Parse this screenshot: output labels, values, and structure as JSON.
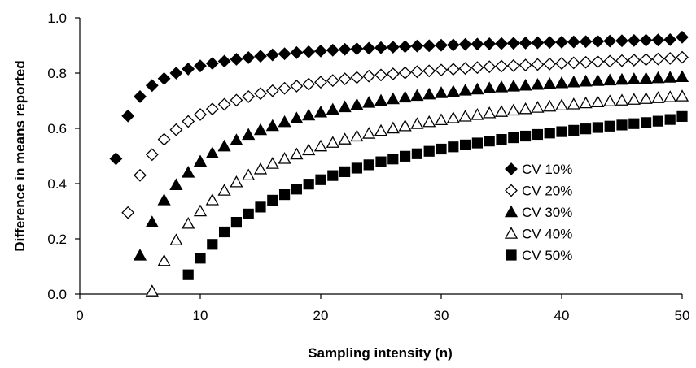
{
  "chart_data": {
    "type": "scatter",
    "xlabel": "Sampling intensity (n)",
    "ylabel": "Difference in means reported",
    "xlim": [
      0,
      50
    ],
    "ylim": [
      0,
      1
    ],
    "x_ticks": [
      0,
      10,
      20,
      30,
      40,
      50
    ],
    "y_ticks": [
      0,
      0.2,
      0.4,
      0.6,
      0.8,
      1.0
    ],
    "x_tick_labels": [
      "0",
      "10",
      "20",
      "30",
      "40",
      "50"
    ],
    "y_tick_labels": [
      "0.0",
      "0.2",
      "0.4",
      "0.6",
      "0.8",
      "1.0"
    ],
    "grid": false,
    "legend_position": "center-right",
    "series": [
      {
        "name": "CV 10%",
        "marker": "diamond",
        "fill": "filled",
        "x_start": 3,
        "x_end": 50,
        "values": [
          0.49,
          0.645,
          0.715,
          0.755,
          0.78,
          0.8,
          0.815,
          0.826,
          0.835,
          0.843,
          0.85,
          0.856,
          0.861,
          0.866,
          0.87,
          0.874,
          0.877,
          0.88,
          0.883,
          0.886,
          0.888,
          0.89,
          0.892,
          0.894,
          0.896,
          0.898,
          0.899,
          0.901,
          0.902,
          0.904,
          0.905,
          0.906,
          0.907,
          0.908,
          0.909,
          0.91,
          0.911,
          0.912,
          0.913,
          0.914,
          0.915,
          0.916,
          0.917,
          0.918,
          0.919,
          0.92,
          0.921,
          0.93
        ]
      },
      {
        "name": "CV 20%",
        "marker": "diamond",
        "fill": "open",
        "x_start": 4,
        "x_end": 50,
        "values": [
          0.295,
          0.43,
          0.505,
          0.56,
          0.595,
          0.625,
          0.65,
          0.67,
          0.687,
          0.702,
          0.715,
          0.726,
          0.736,
          0.745,
          0.753,
          0.76,
          0.767,
          0.773,
          0.779,
          0.784,
          0.789,
          0.793,
          0.797,
          0.801,
          0.805,
          0.808,
          0.811,
          0.814,
          0.817,
          0.82,
          0.823,
          0.825,
          0.827,
          0.829,
          0.831,
          0.833,
          0.835,
          0.837,
          0.839,
          0.841,
          0.843,
          0.845,
          0.847,
          0.849,
          0.851,
          0.853,
          0.857
        ]
      },
      {
        "name": "CV 30%",
        "marker": "triangle",
        "fill": "filled",
        "x_start": 5,
        "x_end": 50,
        "values": [
          0.14,
          0.26,
          0.34,
          0.395,
          0.44,
          0.48,
          0.51,
          0.535,
          0.557,
          0.577,
          0.594,
          0.609,
          0.623,
          0.636,
          0.647,
          0.658,
          0.668,
          0.677,
          0.685,
          0.693,
          0.7,
          0.706,
          0.712,
          0.718,
          0.723,
          0.728,
          0.733,
          0.737,
          0.741,
          0.745,
          0.749,
          0.752,
          0.755,
          0.758,
          0.761,
          0.764,
          0.767,
          0.77,
          0.772,
          0.774,
          0.776,
          0.778,
          0.78,
          0.782,
          0.784,
          0.786
        ]
      },
      {
        "name": "CV 40%",
        "marker": "triangle",
        "fill": "open",
        "x_start": 6,
        "x_end": 50,
        "values": [
          0.01,
          0.12,
          0.195,
          0.255,
          0.3,
          0.34,
          0.375,
          0.405,
          0.43,
          0.452,
          0.472,
          0.49,
          0.506,
          0.521,
          0.535,
          0.548,
          0.56,
          0.571,
          0.581,
          0.591,
          0.6,
          0.608,
          0.616,
          0.623,
          0.63,
          0.637,
          0.643,
          0.649,
          0.655,
          0.66,
          0.665,
          0.67,
          0.675,
          0.679,
          0.683,
          0.687,
          0.691,
          0.695,
          0.698,
          0.701,
          0.704,
          0.707,
          0.71,
          0.713,
          0.716
        ]
      },
      {
        "name": "CV 50%",
        "marker": "square",
        "fill": "filled",
        "x_start": 9,
        "x_end": 50,
        "values": [
          0.07,
          0.13,
          0.18,
          0.225,
          0.26,
          0.29,
          0.315,
          0.34,
          0.36,
          0.38,
          0.398,
          0.414,
          0.429,
          0.443,
          0.456,
          0.468,
          0.479,
          0.489,
          0.499,
          0.508,
          0.517,
          0.525,
          0.533,
          0.54,
          0.547,
          0.554,
          0.56,
          0.566,
          0.572,
          0.578,
          0.583,
          0.588,
          0.593,
          0.598,
          0.603,
          0.608,
          0.612,
          0.617,
          0.621,
          0.626,
          0.632,
          0.643
        ]
      }
    ]
  }
}
